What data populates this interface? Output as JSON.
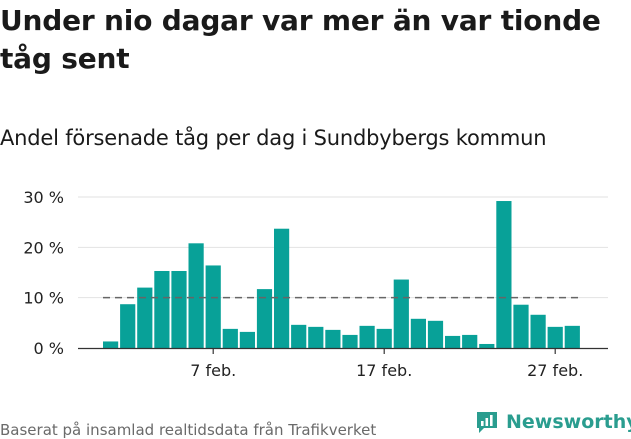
{
  "title": "Under nio dagar var mer än var tionde tåg sent",
  "subtitle": "Andel försenade tåg per dag i Sundbybergs kommun",
  "footer": {
    "source": "Baserat på insamlad realtidsdata från Trafikverket",
    "brand": "Newsworthy"
  },
  "colors": {
    "bar": "#08a198",
    "grid": "#e2e2e2",
    "axis": "#333333",
    "reference": "#666666",
    "brand": "#2a9d8f"
  },
  "chart_data": {
    "type": "bar",
    "title": "Andel försenade tåg per dag i Sundbybergs kommun",
    "xlabel": "",
    "ylabel": "",
    "unit": "%",
    "ylim": [
      0,
      30
    ],
    "yticks": [
      0,
      10,
      20,
      30
    ],
    "ytick_labels": [
      "0 %",
      "10 %",
      "20 %",
      "30 %"
    ],
    "xtick_labels": [
      {
        "label": "7 feb.",
        "index": 6
      },
      {
        "label": "17 feb.",
        "index": 16
      },
      {
        "label": "27 feb.",
        "index": 26
      }
    ],
    "categories": [
      "1 feb.",
      "2 feb.",
      "3 feb.",
      "4 feb.",
      "5 feb.",
      "6 feb.",
      "7 feb.",
      "8 feb.",
      "9 feb.",
      "10 feb.",
      "11 feb.",
      "12 feb.",
      "13 feb.",
      "14 feb.",
      "15 feb.",
      "16 feb.",
      "17 feb.",
      "18 feb.",
      "19 feb.",
      "20 feb.",
      "21 feb.",
      "22 feb.",
      "23 feb.",
      "24 feb.",
      "25 feb.",
      "26 feb.",
      "27 feb.",
      "28 feb."
    ],
    "values": [
      1.3,
      8.7,
      12.0,
      15.3,
      15.3,
      20.8,
      16.4,
      3.8,
      3.2,
      11.7,
      23.7,
      4.6,
      4.2,
      3.6,
      2.6,
      4.4,
      3.8,
      13.6,
      5.8,
      5.4,
      2.4,
      2.6,
      0.8,
      29.2,
      8.6,
      6.6,
      4.2,
      4.4
    ],
    "reference_line": {
      "value": 10,
      "style": "dashed"
    },
    "grid": true,
    "legend": "none"
  }
}
